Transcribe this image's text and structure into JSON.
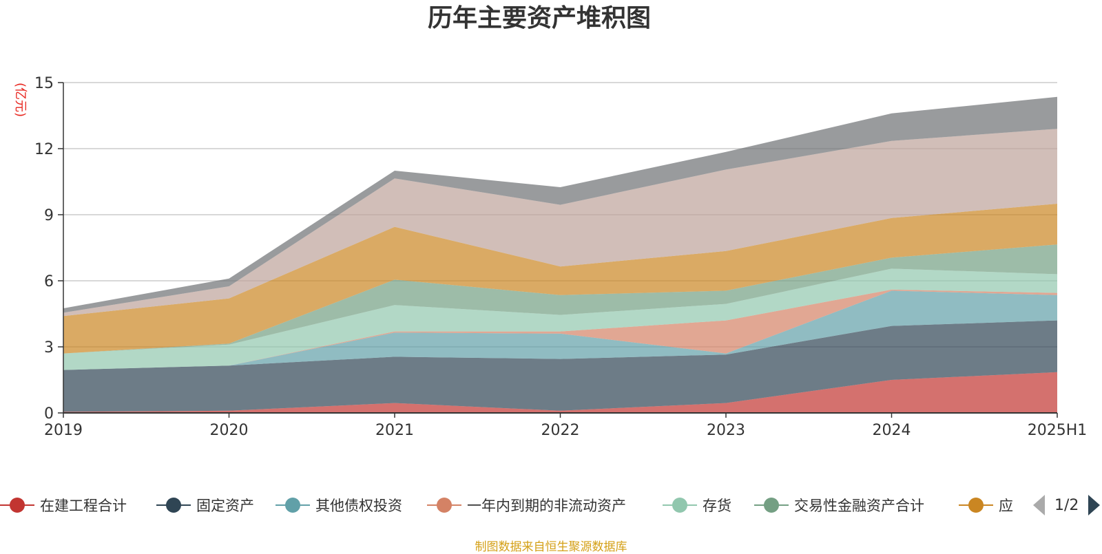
{
  "chart_data": {
    "type": "area",
    "stacked": true,
    "title": "历年主要资产堆积图",
    "ylabel": "(亿元)",
    "ylim": [
      0,
      15
    ],
    "yticks": [
      0,
      3,
      6,
      9,
      12,
      15
    ],
    "grid": true,
    "legend_position": "bottom",
    "categories": [
      "2019",
      "2020",
      "2021",
      "2022",
      "2023",
      "2024",
      "2025H1"
    ],
    "series": [
      {
        "name": "在建工程合计",
        "color": "#c23531",
        "values": [
          0.05,
          0.1,
          0.45,
          0.1,
          0.45,
          1.5,
          1.85
        ]
      },
      {
        "name": "固定资产",
        "color": "#2f4554",
        "values": [
          1.9,
          2.05,
          2.1,
          2.35,
          2.2,
          2.45,
          2.35
        ]
      },
      {
        "name": "其他债权投资",
        "color": "#61a0a8",
        "values": [
          0,
          0,
          1.1,
          1.15,
          0.05,
          1.6,
          1.15
        ]
      },
      {
        "name": "一年内到期的非流动资产",
        "color": "#d48265",
        "values": [
          0,
          0,
          0.05,
          0.1,
          1.5,
          0.05,
          0.1
        ]
      },
      {
        "name": "存货",
        "color": "#91c7ae",
        "values": [
          0.75,
          0.95,
          1.2,
          0.75,
          0.75,
          0.95,
          0.85
        ]
      },
      {
        "name": "交易性金融资产合计",
        "color": "#749f83",
        "values": [
          0,
          0.05,
          1.15,
          0.9,
          0.6,
          0.5,
          1.35
        ]
      },
      {
        "name": "应",
        "color": "#ca8622",
        "values": [
          1.7,
          2.05,
          2.4,
          1.3,
          1.8,
          1.8,
          1.85
        ]
      },
      {
        "color": "#bda29a",
        "values": [
          0.15,
          0.55,
          2.2,
          2.8,
          3.7,
          3.5,
          3.4
        ]
      },
      {
        "color": "#6e7074",
        "values": [
          0.2,
          0.35,
          0.35,
          0.8,
          0.8,
          1.25,
          1.45
        ]
      }
    ],
    "legend_shown": [
      "在建工程合计",
      "固定资产",
      "其他债权投资",
      "一年内到期的非流动资产",
      "存货",
      "交易性金融资产合计",
      "应"
    ]
  },
  "legend_pager": {
    "text": "1/2"
  },
  "source_note": "制图数据来自恒生聚源数据库"
}
